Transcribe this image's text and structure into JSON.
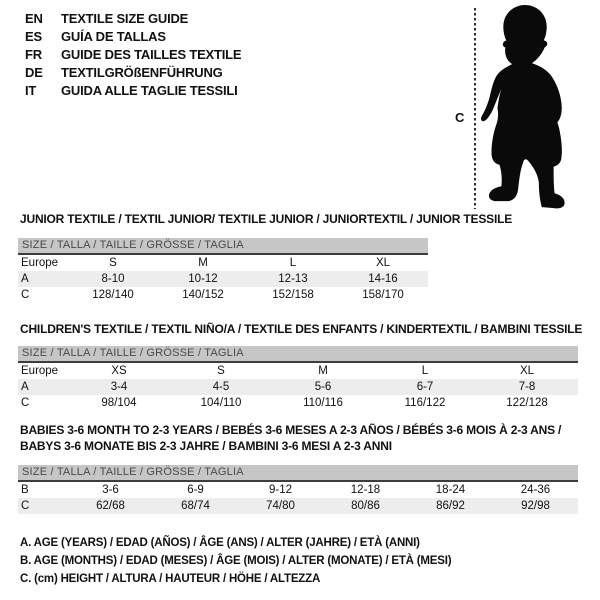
{
  "page": {
    "background": "#ffffff",
    "text_color": "#111111",
    "header_bar_bg": "#c6c6c6",
    "header_bar_text": "#4a4a4a",
    "row_alt_bg": "#ededed",
    "silhouette_color": "#0a0a0a"
  },
  "language_list": {
    "items": [
      {
        "code": "EN",
        "label": "TEXTILE SIZE GUIDE"
      },
      {
        "code": "ES",
        "label": "GUÍA DE TALLAS"
      },
      {
        "code": "FR",
        "label": "GUIDE DES TAILLES TEXTILE"
      },
      {
        "code": "DE",
        "label": "TEXTILGRÖßENFÜHRUNG"
      },
      {
        "code": "IT",
        "label": "GUIDA ALLE TAGLIE TESSILI"
      }
    ]
  },
  "figure": {
    "label": "C",
    "icon": "toddler-silhouette"
  },
  "sections": [
    {
      "title_lines": [
        "JUNIOR TEXTILE / TEXTIL JUNIOR/ TEXTILE JUNIOR / JUNIORTEXTIL / JUNIOR TESSILE"
      ],
      "table": {
        "header": "SIZE / TALLA / TAILLE / GRÖSSE / TAGLIA",
        "rows": [
          {
            "label": "Europe",
            "values": [
              "S",
              "M",
              "L",
              "XL"
            ],
            "shaded": false
          },
          {
            "label": "A",
            "values": [
              "8-10",
              "10-12",
              "12-13",
              "14-16"
            ],
            "shaded": true
          },
          {
            "label": "C",
            "values": [
              "128/140",
              "140/152",
              "152/158",
              "158/170"
            ],
            "shaded": false
          }
        ]
      }
    },
    {
      "title_lines": [
        "CHILDREN'S TEXTILE / TEXTIL NIÑO/A / TEXTILE DES ENFANTS / KINDERTEXTIL / BAMBINI TESSILE"
      ],
      "table": {
        "header": "SIZE / TALLA / TAILLE / GRÖSSE / TAGLIA",
        "rows": [
          {
            "label": "Europe",
            "values": [
              "XS",
              "S",
              "M",
              "L",
              "XL"
            ],
            "shaded": false
          },
          {
            "label": "A",
            "values": [
              "3-4",
              "4-5",
              "5-6",
              "6-7",
              "7-8"
            ],
            "shaded": true
          },
          {
            "label": "C",
            "values": [
              "98/104",
              "104/110",
              "110/116",
              "116/122",
              "122/128"
            ],
            "shaded": false
          }
        ]
      }
    },
    {
      "title_lines": [
        "BABIES 3-6 MONTH TO 2-3 YEARS / BEBÉS 3-6 MESES A 2-3 AÑOS / BÉBÉS 3-6 MOIS À 2-3 ANS /",
        "BABYS 3-6 MONATE BIS 2-3 JAHRE / BAMBINI 3-6 MESI A 2-3 ANNI"
      ],
      "table": {
        "header": "SIZE / TALLA / TAILLE / GRÖSSE / TAGLIA",
        "rows": [
          {
            "label": "B",
            "values": [
              "3-6",
              "6-9",
              "9-12",
              "12-18",
              "18-24",
              "24-36"
            ],
            "shaded": false
          },
          {
            "label": "C",
            "values": [
              "62/68",
              "68/74",
              "74/80",
              "80/86",
              "86/92",
              "92/98"
            ],
            "shaded": true
          }
        ]
      }
    }
  ],
  "footnotes": [
    "A. AGE (YEARS) / EDAD (AÑOS) / ÂGE (ANS) / ALTER (JAHRE) / ETÀ (ANNI)",
    "B. AGE (MONTHS) / EDAD (MESES) / ÂGE (MOIS) / ALTER (MONATE) / ETÀ (MESI)",
    "C. (cm) HEIGHT / ALTURA / HAUTEUR / HÖHE / ALTEZZA"
  ]
}
